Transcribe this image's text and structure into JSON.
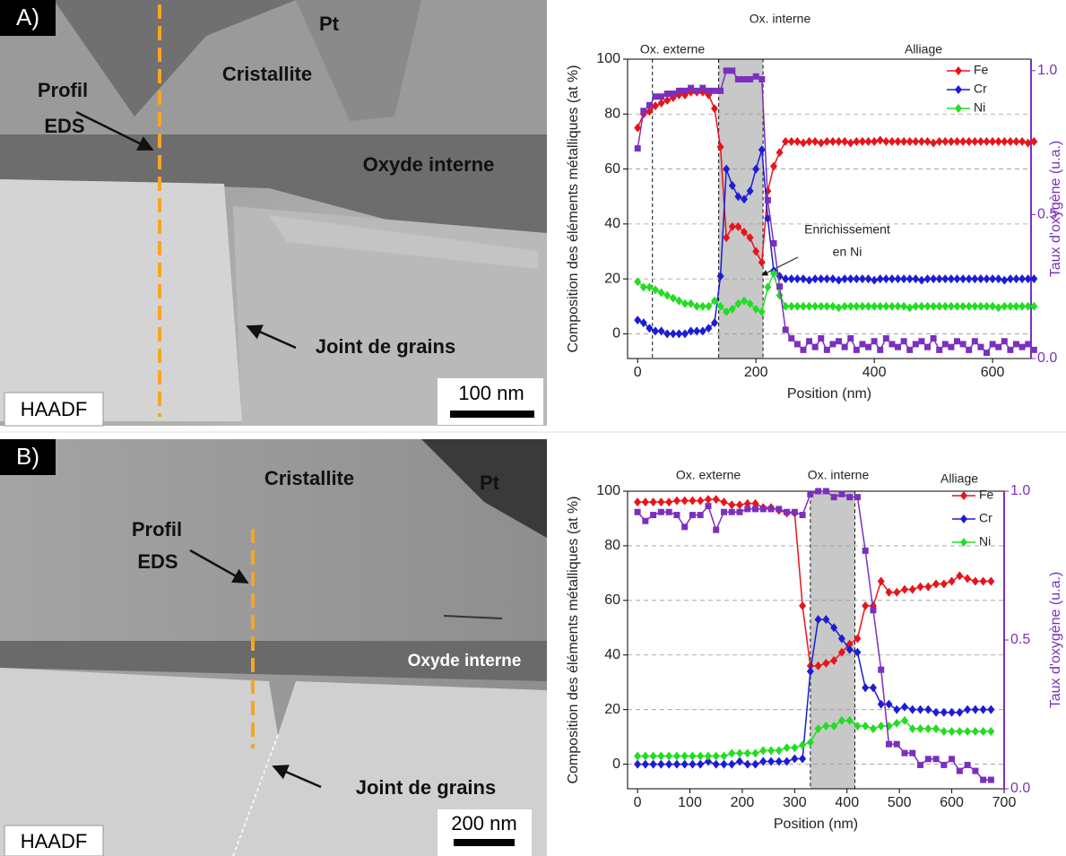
{
  "images": [
    {
      "panel_label": "A)",
      "texts": [
        "Pt",
        "Cristallite",
        "Profil",
        "EDS",
        "Oxyde interne",
        "Joint de grains"
      ],
      "scale_bar": "100 nm",
      "mode": "HAADF"
    },
    {
      "panel_label": "B)",
      "texts": [
        "Cristallite",
        "Pt",
        "Profil",
        "EDS",
        "Oxyde interne",
        "Joint de grains"
      ],
      "scale_bar": "200 nm",
      "mode": "HAADF"
    }
  ],
  "chart_data": [
    {
      "type": "line",
      "x_label": "Position (nm)",
      "y_label": "Composition des éléments métalliques (at %)",
      "y2_label": "Taux d'oxygène (u.a.)",
      "region_labels": [
        "Ox. externe",
        "Ox. interne",
        "Alliage"
      ],
      "annotation": [
        "Enrichissement",
        "en Ni"
      ],
      "shaded_x": [
        137,
        212
      ],
      "marker_x": 25,
      "xlim": [
        -17,
        665
      ],
      "xticks": [
        0,
        200,
        400,
        600
      ],
      "ylim": [
        -9,
        100
      ],
      "yticks": [
        0,
        20,
        40,
        60,
        80,
        100
      ],
      "y2lim": [
        0,
        1.04
      ],
      "y2ticks": [
        {
          "value": 0,
          "label": "0.0"
        },
        0.5,
        {
          "value": 1,
          "label": "1.0"
        }
      ],
      "grid": true,
      "legend": "top-right",
      "x": [
        0,
        10,
        20,
        30,
        40,
        50,
        60,
        70,
        80,
        90,
        100,
        110,
        120,
        130,
        140,
        150,
        160,
        170,
        180,
        190,
        200,
        210,
        220,
        230,
        240,
        250,
        260,
        270,
        280,
        290,
        300,
        310,
        320,
        330,
        340,
        350,
        360,
        370,
        380,
        390,
        400,
        410,
        420,
        430,
        440,
        450,
        460,
        470,
        480,
        490,
        500,
        510,
        520,
        530,
        540,
        550,
        560,
        570,
        580,
        590,
        600,
        610,
        620,
        630,
        640,
        650,
        660,
        670
      ],
      "series": [
        {
          "name": "Fe",
          "color": "#e8141b",
          "marker": "diamond",
          "values": [
            75,
            80,
            81,
            83,
            84,
            85,
            86,
            87,
            87,
            88,
            88,
            88,
            87,
            82,
            68,
            35,
            39,
            39,
            37,
            35,
            30,
            26,
            52,
            61,
            66,
            70,
            70,
            70,
            69.5,
            70,
            70,
            69.5,
            70,
            70,
            70,
            70,
            69.5,
            70,
            70,
            70,
            70,
            70.5,
            70,
            70,
            70,
            70,
            70,
            70,
            70,
            70,
            69.5,
            70,
            70,
            70,
            70,
            70,
            70,
            70,
            70,
            70,
            70,
            70,
            70,
            70,
            70,
            70,
            69.5,
            70
          ]
        },
        {
          "name": "Cr",
          "color": "#1c1cd6",
          "marker": "diamond",
          "values": [
            5,
            4,
            2,
            1,
            1,
            0,
            0,
            0,
            0,
            1,
            1,
            1,
            2,
            4,
            21,
            60,
            54,
            50,
            49,
            52,
            60,
            67,
            42,
            23,
            21,
            20,
            20,
            20,
            20,
            19.5,
            20,
            20,
            20,
            20,
            19.5,
            20,
            20,
            20,
            20,
            20,
            19.5,
            20,
            20,
            20,
            20,
            20,
            20,
            20,
            19.5,
            20,
            20,
            20,
            20,
            20,
            20,
            20,
            20,
            20,
            20,
            20,
            20,
            20,
            19.5,
            20,
            20,
            20,
            20,
            20
          ]
        },
        {
          "name": "Ni",
          "color": "#22dd22",
          "marker": "diamond",
          "values": [
            19,
            17,
            17,
            16,
            15,
            14,
            13,
            12,
            11,
            11,
            10,
            10,
            10,
            12,
            10,
            8,
            9,
            11,
            12,
            11,
            9,
            8,
            17,
            22,
            14,
            10,
            10,
            10,
            10,
            10,
            10,
            10,
            10,
            10,
            9.5,
            10,
            10,
            10,
            10,
            10,
            10,
            10,
            10,
            10,
            10,
            10,
            9.5,
            10,
            10,
            10,
            10,
            10,
            10,
            10,
            10,
            10,
            10,
            10,
            10,
            10,
            10,
            9.5,
            10,
            10,
            10,
            10,
            10,
            10
          ]
        },
        {
          "name": "O",
          "color": "#7b2fbe",
          "marker": "square",
          "axis": "y2",
          "values": [
            0.73,
            0.86,
            0.88,
            0.91,
            0.91,
            0.92,
            0.92,
            0.93,
            0.93,
            0.94,
            0.93,
            0.94,
            0.93,
            0.93,
            0.93,
            1.0,
            1.0,
            0.97,
            0.97,
            0.97,
            0.98,
            0.97,
            0.55,
            0.4,
            0.25,
            0.1,
            0.07,
            0.05,
            0.03,
            0.06,
            0.04,
            0.07,
            0.03,
            0.05,
            0.06,
            0.04,
            0.07,
            0.03,
            0.05,
            0.04,
            0.06,
            0.03,
            0.07,
            0.05,
            0.04,
            0.06,
            0.03,
            0.05,
            0.06,
            0.04,
            0.07,
            0.03,
            0.05,
            0.04,
            0.06,
            0.05,
            0.03,
            0.06,
            0.04,
            0.02,
            0.05,
            0.04,
            0.06,
            0.03,
            0.05,
            0.04,
            0.05,
            0.03
          ]
        }
      ]
    },
    {
      "type": "line",
      "x_label": "Position (nm)",
      "y_label": "Composition des éléments métalliques (at %)",
      "y2_label": "Taux d'oxygène (u.a.)",
      "region_labels": [
        "Ox. externe",
        "Ox. interne",
        "Alliage"
      ],
      "shaded_x": [
        330,
        415
      ],
      "xlim": [
        -19,
        700
      ],
      "xticks": [
        0,
        100,
        200,
        300,
        400,
        500,
        600,
        700
      ],
      "ylim": [
        -9,
        100
      ],
      "yticks": [
        0,
        20,
        40,
        60,
        80,
        100
      ],
      "y2lim": [
        0,
        1
      ],
      "y2ticks": [
        {
          "value": 0,
          "label": "0.0"
        },
        0.5,
        {
          "value": 1,
          "label": "1.0"
        }
      ],
      "grid": true,
      "legend": "top-right",
      "x": [
        0,
        15,
        30,
        45,
        60,
        75,
        90,
        105,
        120,
        135,
        150,
        165,
        180,
        195,
        210,
        225,
        240,
        255,
        270,
        285,
        300,
        315,
        330,
        345,
        360,
        375,
        390,
        405,
        420,
        435,
        450,
        465,
        480,
        495,
        510,
        525,
        540,
        555,
        570,
        585,
        600,
        615,
        630,
        645,
        660,
        675
      ],
      "series": [
        {
          "name": "Fe",
          "color": "#e8141b",
          "marker": "diamond",
          "values": [
            96,
            96,
            96,
            96,
            96,
            96.5,
            96.5,
            96.5,
            96.5,
            97,
            97,
            96,
            95,
            95,
            95.5,
            95.5,
            94,
            94,
            93,
            92,
            92,
            58,
            36,
            36,
            37,
            38,
            41,
            44,
            46,
            58,
            58,
            67,
            63,
            63,
            64,
            64,
            65,
            65,
            66,
            66,
            67,
            69,
            68,
            67,
            67,
            67
          ]
        },
        {
          "name": "Cr",
          "color": "#1c1cd6",
          "marker": "diamond",
          "values": [
            0,
            0,
            0,
            0,
            0,
            0,
            0,
            0,
            0,
            1,
            0,
            0,
            0,
            1,
            0,
            0,
            1,
            1,
            1,
            1,
            2,
            2,
            34,
            53,
            53,
            50,
            46,
            42,
            41,
            28,
            28,
            22,
            22,
            20,
            21,
            20,
            20,
            20,
            19,
            19,
            19,
            19,
            20,
            20,
            20,
            20
          ]
        },
        {
          "name": "Ni",
          "color": "#22dd22",
          "marker": "diamond",
          "values": [
            3,
            3,
            3,
            3,
            3,
            3,
            3,
            3,
            3,
            3,
            3,
            3,
            4,
            4,
            4,
            4,
            5,
            5,
            5,
            6,
            6,
            7,
            8,
            13,
            14,
            14,
            16,
            16,
            14,
            14,
            13,
            14,
            14,
            15,
            16,
            13,
            13,
            13,
            13,
            12,
            12,
            12,
            12,
            12,
            12,
            12
          ]
        },
        {
          "name": "O",
          "color": "#7b2fbe",
          "marker": "square",
          "axis": "y2",
          "values": [
            0.93,
            0.9,
            0.92,
            0.93,
            0.93,
            0.92,
            0.88,
            0.92,
            0.92,
            0.95,
            0.87,
            0.93,
            0.93,
            0.93,
            0.94,
            0.94,
            0.94,
            0.94,
            0.94,
            0.93,
            0.93,
            0.92,
            0.99,
            1.0,
            1.0,
            0.98,
            0.99,
            0.98,
            0.98,
            0.8,
            0.6,
            0.4,
            0.15,
            0.15,
            0.12,
            0.12,
            0.08,
            0.1,
            0.1,
            0.08,
            0.1,
            0.06,
            0.08,
            0.06,
            0.03,
            0.03
          ]
        }
      ]
    }
  ]
}
